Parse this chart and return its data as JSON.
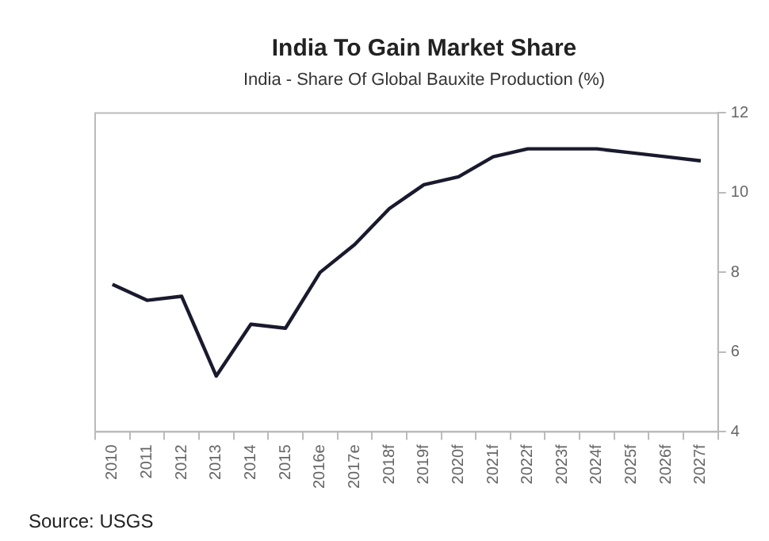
{
  "chart_data": {
    "type": "line",
    "title": "India To Gain Market Share",
    "subtitle": "India - Share Of Global Bauxite Production (%)",
    "categories": [
      "2010",
      "2011",
      "2012",
      "2013",
      "2014",
      "2015",
      "2016e",
      "2017e",
      "2018f",
      "2019f",
      "2020f",
      "2021f",
      "2022f",
      "2023f",
      "2024f",
      "2025f",
      "2026f",
      "2027f"
    ],
    "series": [
      {
        "color": "#1a1a2e",
        "values": [
          7.7,
          7.3,
          7.4,
          5.4,
          6.7,
          6.6,
          8.0,
          8.7,
          9.6,
          10.2,
          10.4,
          10.9,
          11.1,
          11.1,
          11.1,
          11.0,
          10.9,
          10.8
        ]
      }
    ],
    "ylim": [
      4,
      12
    ],
    "yticks": [
      4,
      6,
      8,
      10,
      12
    ],
    "grid": false,
    "legend": false,
    "marker": "none",
    "line_style": "solid",
    "annotations": [
      "Source: USGS"
    ]
  }
}
